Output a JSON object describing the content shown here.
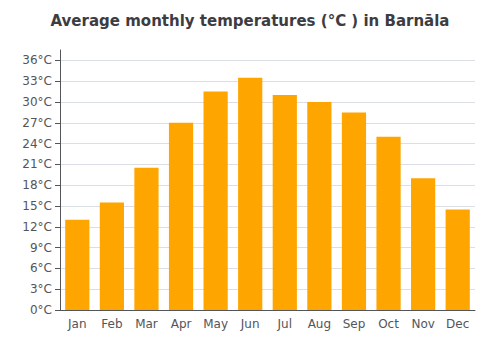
{
  "chart_data": {
    "type": "bar",
    "title": "Average monthly temperatures (°C ) in Barnāla",
    "categories": [
      "Jan",
      "Feb",
      "Mar",
      "Apr",
      "May",
      "Jun",
      "Jul",
      "Aug",
      "Sep",
      "Oct",
      "Nov",
      "Dec"
    ],
    "values": [
      13,
      15.5,
      20.5,
      27,
      31.5,
      33.5,
      31,
      30,
      28.5,
      25,
      19,
      14.5
    ],
    "color": "#FFA500",
    "ylim": [
      0,
      37.5
    ],
    "yticks": [
      {
        "value": 0,
        "label": "0°C"
      },
      {
        "value": 3,
        "label": "3°C"
      },
      {
        "value": 6,
        "label": "6°C"
      },
      {
        "value": 9,
        "label": "9°C"
      },
      {
        "value": 12,
        "label": "12°C"
      },
      {
        "value": 15,
        "label": "15°C"
      },
      {
        "value": 18,
        "label": "18°C"
      },
      {
        "value": 21,
        "label": "21°C"
      },
      {
        "value": 24,
        "label": "24°C"
      },
      {
        "value": 27,
        "label": "27°C"
      },
      {
        "value": 30,
        "label": "30°C"
      },
      {
        "value": 33,
        "label": "33°C"
      },
      {
        "value": 36,
        "label": "36°C"
      }
    ],
    "grid": true
  }
}
